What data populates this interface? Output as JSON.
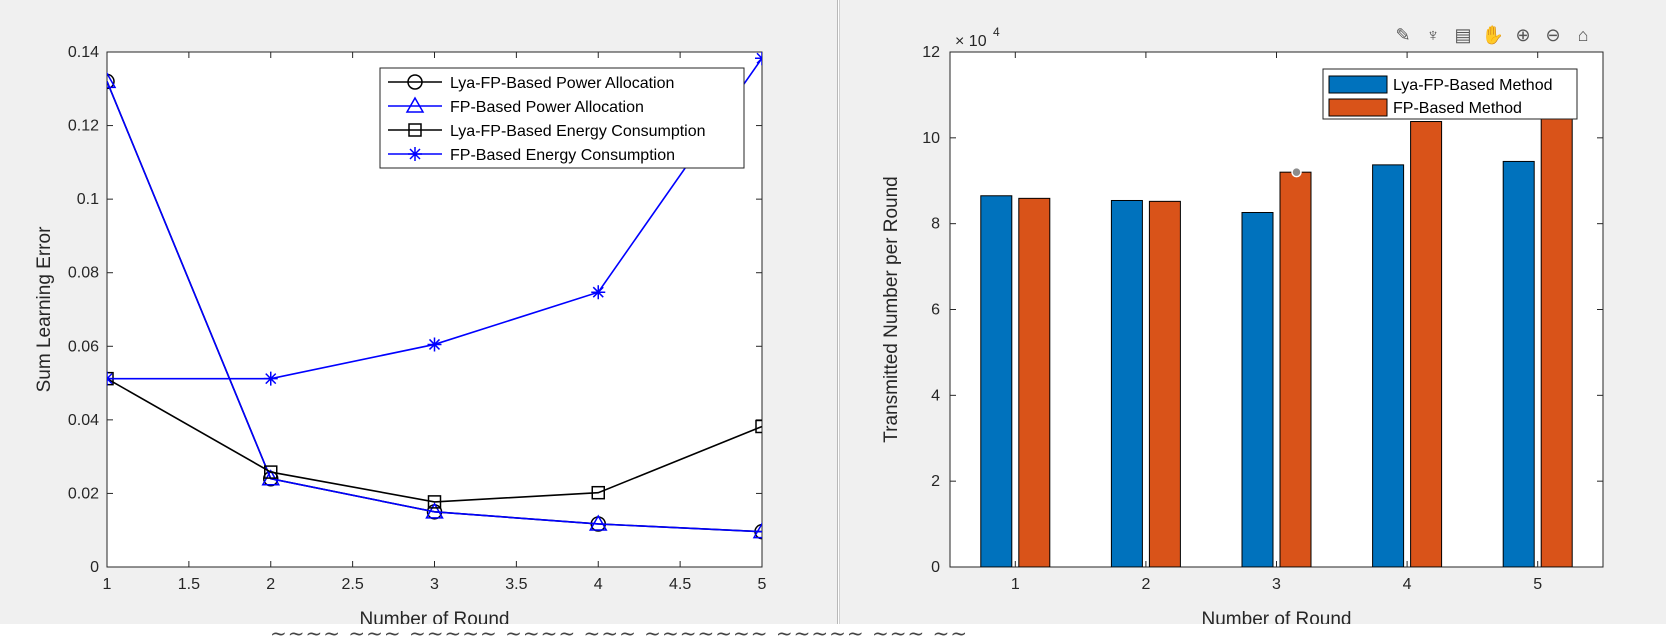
{
  "chart_data": [
    {
      "type": "line",
      "title": "",
      "xlabel": "Number of Round",
      "ylabel": "Sum Learning Error",
      "xlim": [
        1,
        5
      ],
      "ylim": [
        0,
        0.14
      ],
      "xticks": [
        1,
        1.5,
        2,
        2.5,
        3,
        3.5,
        4,
        4.5,
        5
      ],
      "xtick_labels": [
        "1",
        "1.5",
        "2",
        "2.5",
        "3",
        "3.5",
        "4",
        "4.5",
        "5"
      ],
      "yticks": [
        0,
        0.02,
        0.04,
        0.06,
        0.08,
        0.1,
        0.12,
        0.14
      ],
      "ytick_labels": [
        "0",
        "0.02",
        "0.04",
        "0.06",
        "0.08",
        "0.1",
        "0.12",
        "0.14"
      ],
      "grid": false,
      "legend_position": "top-right",
      "x": [
        1,
        2,
        3,
        4,
        5
      ],
      "series": [
        {
          "name": "Lya-FP-Based Power Allocation",
          "values": [
            0.132,
            0.024,
            0.015,
            0.0117,
            0.0096
          ],
          "color": "#000000",
          "marker": "circle"
        },
        {
          "name": "FP-Based Power Allocation",
          "values": [
            0.132,
            0.024,
            0.015,
            0.0117,
            0.0096
          ],
          "color": "#0000ff",
          "marker": "triangle"
        },
        {
          "name": "Lya-FP-Based Energy Consumption",
          "values": [
            0.0512,
            0.0258,
            0.0177,
            0.0202,
            0.0382
          ],
          "color": "#000000",
          "marker": "square"
        },
        {
          "name": "FP-Based Energy Consumption",
          "values": [
            0.0512,
            0.0512,
            0.0605,
            0.0747,
            0.1383
          ],
          "color": "#0000ff",
          "marker": "asterisk"
        }
      ]
    },
    {
      "type": "bar",
      "title": "",
      "xlabel": "Number of Round",
      "ylabel": "Transmitted Number per Round",
      "categories": [
        "1",
        "2",
        "3",
        "4",
        "5"
      ],
      "ylim": [
        0,
        120000
      ],
      "yticks": [
        0,
        20000,
        40000,
        60000,
        80000,
        100000,
        120000
      ],
      "ytick_labels": [
        "0",
        "2",
        "4",
        "6",
        "8",
        "10",
        "12"
      ],
      "exponent_label": "× 10",
      "exponent_power": "4",
      "grid": false,
      "legend_position": "top-right",
      "series": [
        {
          "name": "Lya-FP-Based Method",
          "values": [
            86500,
            85400,
            82600,
            93700,
            94500
          ],
          "color": "#0072bd"
        },
        {
          "name": "FP-Based Method",
          "values": [
            85900,
            85200,
            92000,
            103800,
            105000
          ],
          "color": "#d95319"
        }
      ],
      "datatip_index": [
        1,
        2
      ]
    }
  ],
  "toolbar": {
    "icons": [
      "export-icon",
      "brush-icon",
      "datatip-icon",
      "pan-icon",
      "zoom-in-icon",
      "zoom-out-icon",
      "home-icon"
    ],
    "glyphs": [
      "✎",
      "♆",
      "▤",
      "✋",
      "⊕",
      "⊖",
      "⌂"
    ]
  }
}
